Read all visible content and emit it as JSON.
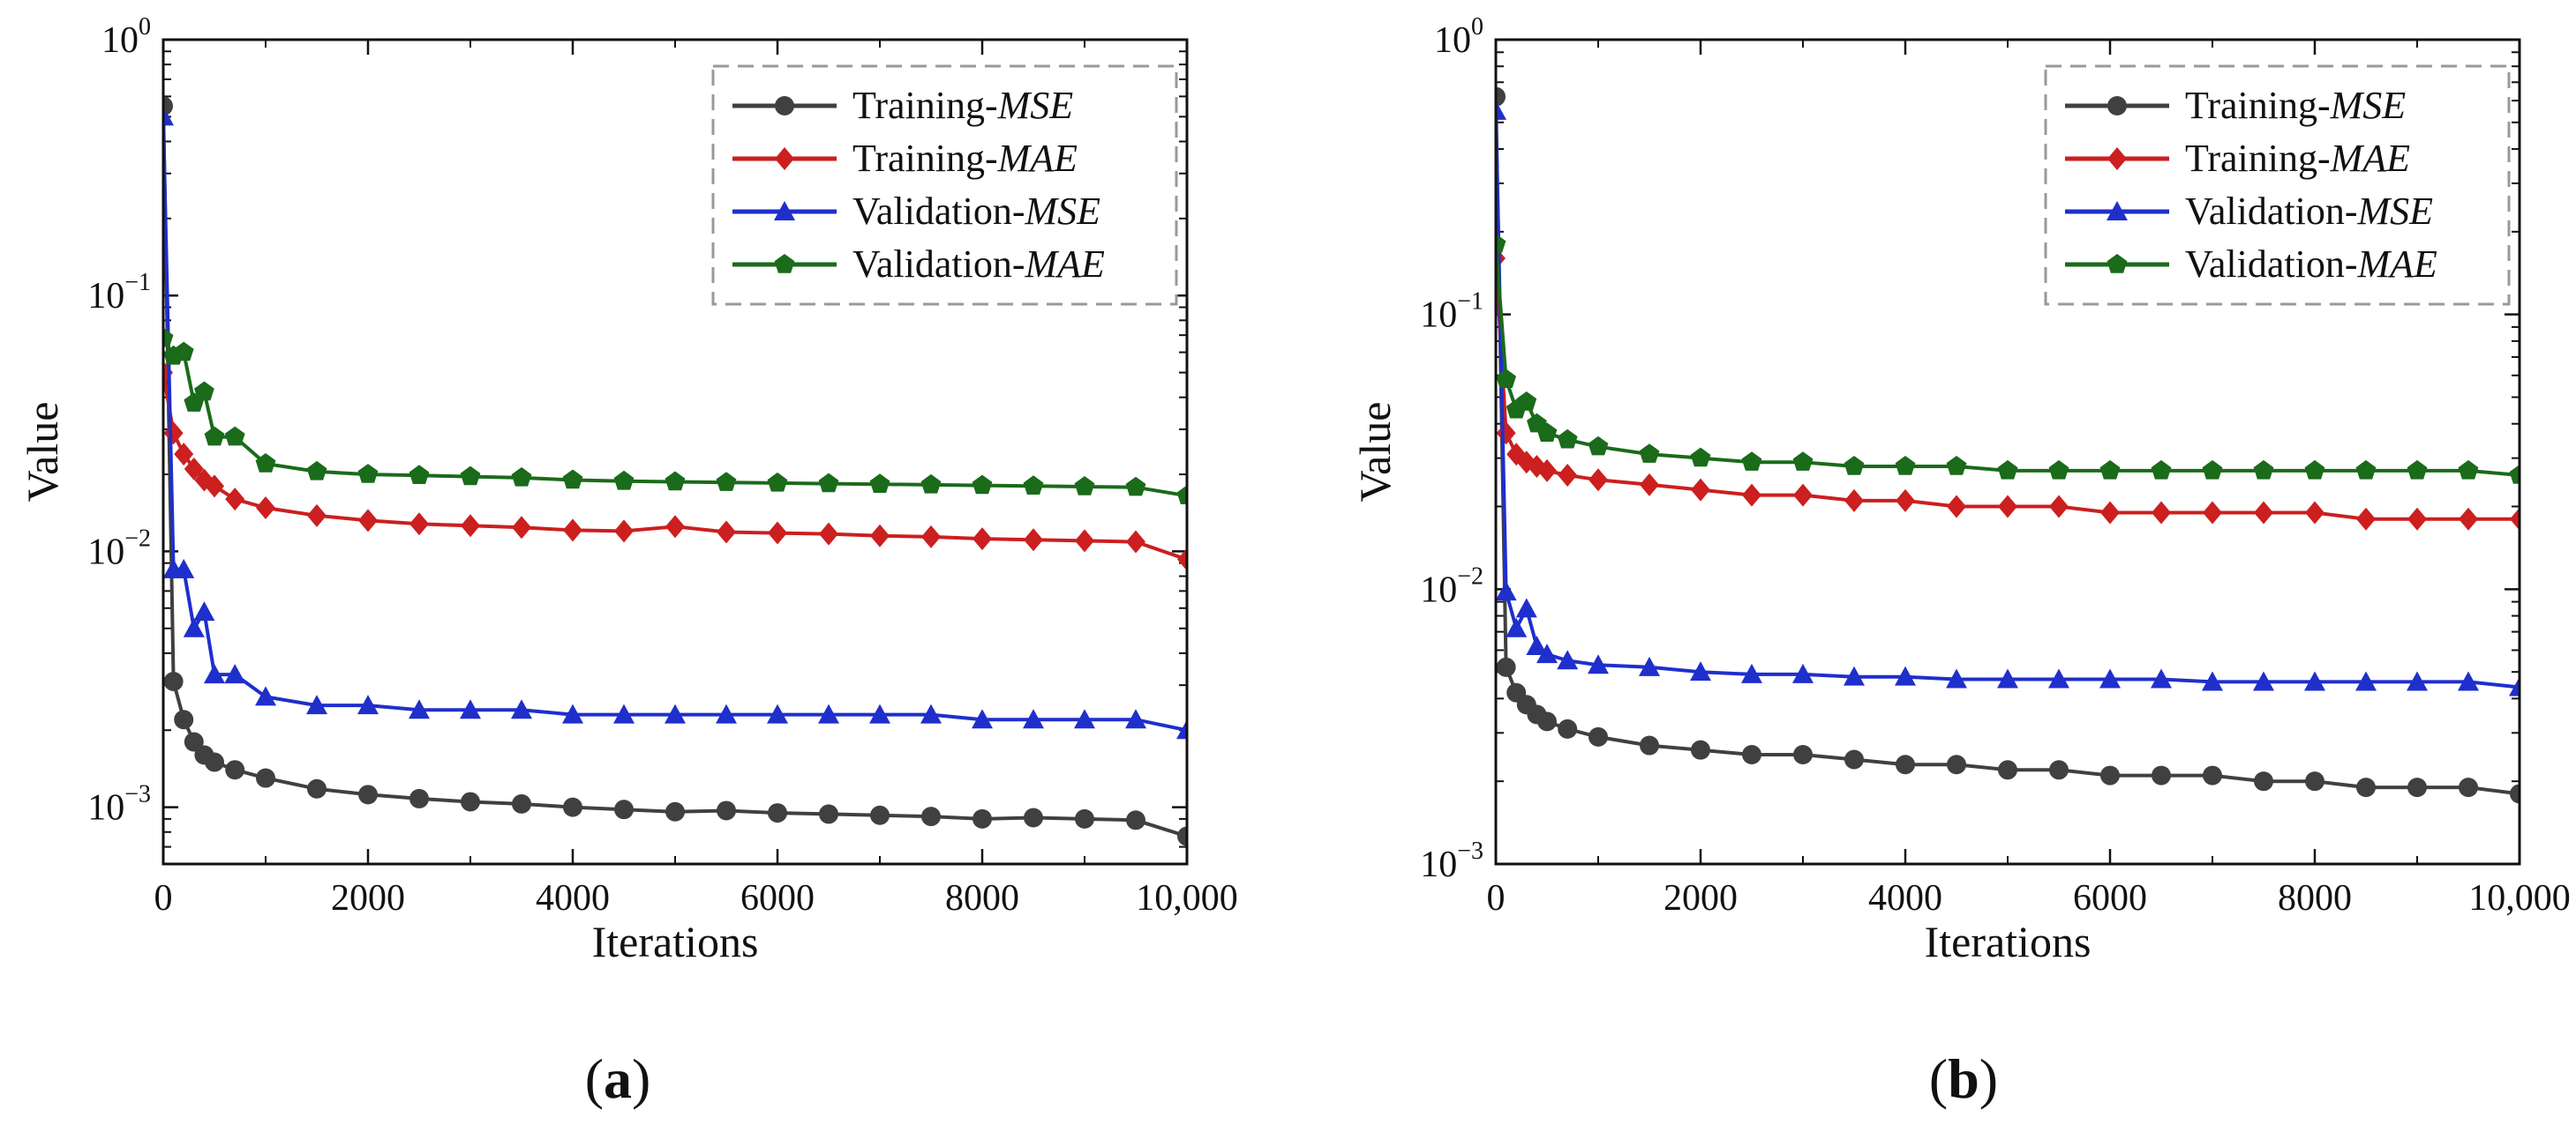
{
  "chart_data": [
    {
      "type": "line",
      "panel_label": "a",
      "xlabel": "Iterations",
      "ylabel": "Value",
      "yscale": "log",
      "xlim": [
        0,
        10000
      ],
      "ylim": [
        0.0006,
        1
      ],
      "x_ticks": [
        {
          "value": 0,
          "label": "0"
        },
        {
          "value": 2000,
          "label": "2000"
        },
        {
          "value": 4000,
          "label": "4000"
        },
        {
          "value": 6000,
          "label": "6000"
        },
        {
          "value": 8000,
          "label": "8000"
        },
        {
          "value": 10000,
          "label": "10,000"
        }
      ],
      "y_ticks": [
        {
          "value": 1,
          "base": "10",
          "exp": "0"
        },
        {
          "value": 0.1,
          "base": "10",
          "exp": "−1"
        },
        {
          "value": 0.01,
          "base": "10",
          "exp": "−2"
        },
        {
          "value": 0.001,
          "base": "10",
          "exp": "−3"
        }
      ],
      "legend": {
        "position": "top-right",
        "frame": "dashed"
      },
      "series": [
        {
          "prefix": "Training-",
          "metric": "MSE",
          "color": "#404040",
          "marker": "circle",
          "x": [
            0,
            100,
            200,
            300,
            400,
            500,
            700,
            1000,
            1500,
            2000,
            2500,
            3000,
            3500,
            4000,
            4500,
            5000,
            5500,
            6000,
            6500,
            7000,
            7500,
            8000,
            8500,
            9000,
            9500,
            10000
          ],
          "y": [
            0.55,
            0.0031,
            0.0022,
            0.0018,
            0.0016,
            0.0015,
            0.0014,
            0.0013,
            0.00118,
            0.00112,
            0.00108,
            0.00105,
            0.00103,
            0.001,
            0.00098,
            0.00096,
            0.00097,
            0.00095,
            0.00094,
            0.00093,
            0.00092,
            0.0009,
            0.00091,
            0.0009,
            0.00089,
            0.00077
          ]
        },
        {
          "prefix": "Training-",
          "metric": "MAE",
          "color": "#cc1f1f",
          "marker": "diamond",
          "x": [
            0,
            100,
            200,
            300,
            400,
            500,
            700,
            1000,
            1500,
            2000,
            2500,
            3000,
            3500,
            4000,
            4500,
            5000,
            5500,
            6000,
            6500,
            7000,
            7500,
            8000,
            8500,
            9000,
            9500,
            10000
          ],
          "y": [
            0.05,
            0.029,
            0.024,
            0.021,
            0.019,
            0.018,
            0.016,
            0.0148,
            0.0138,
            0.0132,
            0.0128,
            0.0126,
            0.0124,
            0.0121,
            0.012,
            0.0125,
            0.0119,
            0.0118,
            0.0117,
            0.0115,
            0.0114,
            0.0112,
            0.0111,
            0.011,
            0.0109,
            0.0093
          ]
        },
        {
          "prefix": "Validation-",
          "metric": "MSE",
          "color": "#1f2fcc",
          "marker": "triangle",
          "x": [
            0,
            100,
            200,
            300,
            400,
            500,
            700,
            1000,
            1500,
            2000,
            2500,
            3000,
            3500,
            4000,
            4500,
            5000,
            5500,
            6000,
            6500,
            7000,
            7500,
            8000,
            8500,
            9000,
            9500,
            10000
          ],
          "y": [
            0.5,
            0.0085,
            0.0085,
            0.005,
            0.0058,
            0.0033,
            0.0033,
            0.0027,
            0.0025,
            0.0025,
            0.0024,
            0.0024,
            0.0024,
            0.0023,
            0.0023,
            0.0023,
            0.0023,
            0.0023,
            0.0023,
            0.0023,
            0.0023,
            0.0022,
            0.0022,
            0.0022,
            0.0022,
            0.002
          ]
        },
        {
          "prefix": "Validation-",
          "metric": "MAE",
          "color": "#1a6b1a",
          "marker": "pentagon",
          "x": [
            0,
            100,
            200,
            300,
            400,
            500,
            700,
            1000,
            1500,
            2000,
            2500,
            3000,
            3500,
            4000,
            4500,
            5000,
            5500,
            6000,
            6500,
            7000,
            7500,
            8000,
            8500,
            9000,
            9500,
            10000
          ],
          "y": [
            0.068,
            0.058,
            0.06,
            0.038,
            0.042,
            0.028,
            0.028,
            0.022,
            0.0205,
            0.02,
            0.0198,
            0.0196,
            0.0194,
            0.019,
            0.0188,
            0.0187,
            0.0186,
            0.0185,
            0.0184,
            0.0183,
            0.0182,
            0.0181,
            0.018,
            0.0179,
            0.0178,
            0.0165
          ]
        }
      ]
    },
    {
      "type": "line",
      "panel_label": "b",
      "xlabel": "Iterations",
      "ylabel": "Value",
      "yscale": "log",
      "xlim": [
        0,
        10000
      ],
      "ylim": [
        0.001,
        1
      ],
      "x_ticks": [
        {
          "value": 0,
          "label": "0"
        },
        {
          "value": 2000,
          "label": "2000"
        },
        {
          "value": 4000,
          "label": "4000"
        },
        {
          "value": 6000,
          "label": "6000"
        },
        {
          "value": 8000,
          "label": "8000"
        },
        {
          "value": 10000,
          "label": "10,000"
        }
      ],
      "y_ticks": [
        {
          "value": 1,
          "base": "10",
          "exp": "0"
        },
        {
          "value": 0.1,
          "base": "10",
          "exp": "−1"
        },
        {
          "value": 0.01,
          "base": "10",
          "exp": "−2"
        },
        {
          "value": 0.001,
          "base": "10",
          "exp": "−3"
        }
      ],
      "legend": {
        "position": "top-right",
        "frame": "dashed"
      },
      "series": [
        {
          "prefix": "Training-",
          "metric": "MSE",
          "color": "#404040",
          "marker": "circle",
          "x": [
            0,
            100,
            200,
            300,
            400,
            500,
            700,
            1000,
            1500,
            2000,
            2500,
            3000,
            3500,
            4000,
            4500,
            5000,
            5500,
            6000,
            6500,
            7000,
            7500,
            8000,
            8500,
            9000,
            9500,
            10000
          ],
          "y": [
            0.62,
            0.0052,
            0.0042,
            0.0038,
            0.0035,
            0.0033,
            0.0031,
            0.0029,
            0.0027,
            0.0026,
            0.0025,
            0.0025,
            0.0024,
            0.0023,
            0.0023,
            0.0022,
            0.0022,
            0.0021,
            0.0021,
            0.0021,
            0.002,
            0.002,
            0.0019,
            0.0019,
            0.0019,
            0.0018
          ]
        },
        {
          "prefix": "Training-",
          "metric": "MAE",
          "color": "#cc1f1f",
          "marker": "diamond",
          "x": [
            0,
            100,
            200,
            300,
            400,
            500,
            700,
            1000,
            1500,
            2000,
            2500,
            3000,
            3500,
            4000,
            4500,
            5000,
            5500,
            6000,
            6500,
            7000,
            7500,
            8000,
            8500,
            9000,
            9500,
            10000
          ],
          "y": [
            0.16,
            0.037,
            0.031,
            0.029,
            0.028,
            0.027,
            0.026,
            0.025,
            0.024,
            0.023,
            0.022,
            0.022,
            0.021,
            0.021,
            0.02,
            0.02,
            0.02,
            0.019,
            0.019,
            0.019,
            0.019,
            0.019,
            0.018,
            0.018,
            0.018,
            0.018
          ]
        },
        {
          "prefix": "Validation-",
          "metric": "MSE",
          "color": "#1f2fcc",
          "marker": "triangle",
          "x": [
            0,
            100,
            200,
            300,
            400,
            500,
            700,
            1000,
            1500,
            2000,
            2500,
            3000,
            3500,
            4000,
            4500,
            5000,
            5500,
            6000,
            6500,
            7000,
            7500,
            8000,
            8500,
            9000,
            9500,
            10000
          ],
          "y": [
            0.55,
            0.0098,
            0.0072,
            0.0085,
            0.0062,
            0.0058,
            0.0055,
            0.0053,
            0.0052,
            0.005,
            0.0049,
            0.0049,
            0.0048,
            0.0048,
            0.0047,
            0.0047,
            0.0047,
            0.0047,
            0.0047,
            0.0046,
            0.0046,
            0.0046,
            0.0046,
            0.0046,
            0.0046,
            0.0044
          ]
        },
        {
          "prefix": "Validation-",
          "metric": "MAE",
          "color": "#1a6b1a",
          "marker": "pentagon",
          "x": [
            0,
            100,
            200,
            300,
            400,
            500,
            700,
            1000,
            1500,
            2000,
            2500,
            3000,
            3500,
            4000,
            4500,
            5000,
            5500,
            6000,
            6500,
            7000,
            7500,
            8000,
            8500,
            9000,
            9500,
            10000
          ],
          "y": [
            0.18,
            0.058,
            0.045,
            0.048,
            0.04,
            0.037,
            0.035,
            0.033,
            0.031,
            0.03,
            0.029,
            0.029,
            0.028,
            0.028,
            0.028,
            0.027,
            0.027,
            0.027,
            0.027,
            0.027,
            0.027,
            0.027,
            0.027,
            0.027,
            0.027,
            0.026
          ]
        }
      ]
    }
  ]
}
